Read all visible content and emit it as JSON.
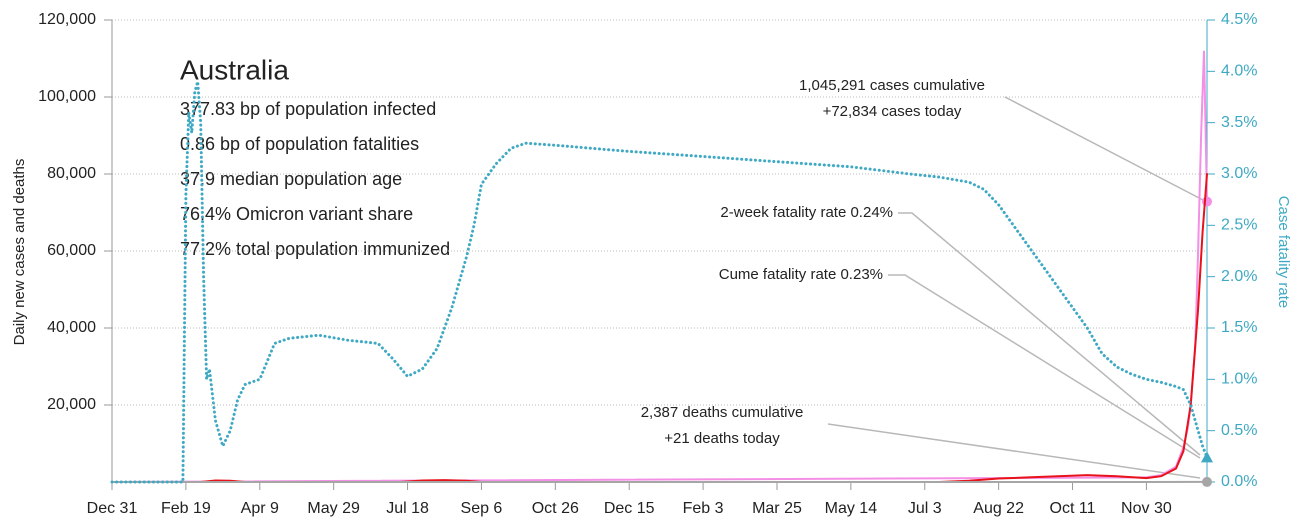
{
  "chart_data": {
    "type": "line",
    "title": "Australia",
    "text_lines": [
      "377.83 bp of population infected",
      "0.86 bp of population fatalities",
      "37.9 median population age",
      "76.4% Omicron variant share",
      "77.2% total population immunized"
    ],
    "ylabel": "Daily new cases and deaths",
    "y2label": "Case fatality rate",
    "annotations": [
      "1,045,291 cases cumulative",
      "+72,834 cases today",
      "2-week fatality rate 0.24%",
      "Cume fatality rate 0.23%",
      "2,387 deaths cumulative",
      "+21 deaths today"
    ],
    "xlim": [
      0,
      741
    ],
    "xticks": [
      {
        "value": 0,
        "label": "Dec 31"
      },
      {
        "value": 50,
        "label": "Feb 19"
      },
      {
        "value": 100,
        "label": "Apr 9"
      },
      {
        "value": 150,
        "label": "May 29"
      },
      {
        "value": 200,
        "label": "Jul 18"
      },
      {
        "value": 250,
        "label": "Sep 6"
      },
      {
        "value": 300,
        "label": "Oct 26"
      },
      {
        "value": 350,
        "label": "Dec 15"
      },
      {
        "value": 400,
        "label": "Feb 3"
      },
      {
        "value": 450,
        "label": "Mar 25"
      },
      {
        "value": 500,
        "label": "May 14"
      },
      {
        "value": 550,
        "label": "Jul 3"
      },
      {
        "value": 600,
        "label": "Aug 22"
      },
      {
        "value": 650,
        "label": "Oct 11"
      },
      {
        "value": 700,
        "label": "Nov 30"
      }
    ],
    "ylim": [
      0,
      120000
    ],
    "yticks": [
      {
        "value": 20000,
        "label": "20,000"
      },
      {
        "value": 40000,
        "label": "40,000"
      },
      {
        "value": 60000,
        "label": "60,000"
      },
      {
        "value": 80000,
        "label": "80,000"
      },
      {
        "value": 100000,
        "label": "100,000"
      },
      {
        "value": 120000,
        "label": "120,000"
      }
    ],
    "y2lim": [
      0,
      4.5
    ],
    "y2ticks": [
      {
        "value": 0,
        "label": "0.0%"
      },
      {
        "value": 0.5,
        "label": "0.5%"
      },
      {
        "value": 1,
        "label": "1.0%"
      },
      {
        "value": 1.5,
        "label": "1.5%"
      },
      {
        "value": 2,
        "label": "2.0%"
      },
      {
        "value": 2.5,
        "label": "2.5%"
      },
      {
        "value": 3,
        "label": "3.0%"
      },
      {
        "value": 3.5,
        "label": "3.5%"
      },
      {
        "value": 4,
        "label": "4.0%"
      },
      {
        "value": 4.5,
        "label": "4.5%"
      }
    ],
    "grid": true,
    "series": [
      {
        "color": "#f48fe6",
        "style": "solid",
        "marker": "circle",
        "x": [
          0,
          700,
          710,
          720,
          725,
          728,
          730,
          733,
          735,
          737,
          739,
          741
        ],
        "values": [
          0,
          1200,
          1800,
          4000,
          9000,
          14000,
          20000,
          35000,
          60000,
          90000,
          112000,
          72834
        ]
      },
      {
        "color": "#e8121a",
        "style": "solid",
        "x": [
          0,
          60,
          70,
          80,
          90,
          100,
          195,
          210,
          225,
          240,
          250,
          560,
          580,
          600,
          620,
          640,
          660,
          680,
          700,
          710,
          720,
          725,
          730,
          735,
          738,
          741
        ],
        "values": [
          0,
          0,
          400,
          300,
          0,
          0,
          0,
          400,
          500,
          300,
          0,
          0,
          300,
          900,
          1200,
          1500,
          1800,
          1500,
          1000,
          1500,
          3500,
          8000,
          20000,
          45000,
          65000,
          80000
        ]
      },
      {
        "color": "#a6a6a6",
        "style": "solid",
        "marker": "circle",
        "x": [
          0,
          700,
          741
        ],
        "values": [
          0,
          10,
          21
        ]
      },
      {
        "color": "#3fa9c4",
        "style": "dotted",
        "axis": "y2",
        "marker": "triangle",
        "x": [
          0,
          48,
          50,
          52,
          54,
          56,
          58,
          60,
          62,
          64,
          66,
          70,
          75,
          80,
          85,
          90,
          100,
          110,
          120,
          140,
          160,
          180,
          190,
          200,
          210,
          220,
          230,
          240,
          245,
          250,
          260,
          270,
          280,
          300,
          350,
          400,
          450,
          500,
          540,
          560,
          580,
          590,
          600,
          610,
          620,
          630,
          640,
          650,
          660,
          670,
          680,
          690,
          700,
          710,
          720,
          725,
          730,
          735,
          738,
          741
        ],
        "values": [
          0,
          0,
          2.8,
          3.6,
          3.4,
          3.8,
          3.9,
          3.5,
          2.0,
          1.0,
          1.1,
          0.6,
          0.35,
          0.5,
          0.8,
          0.95,
          1.0,
          1.35,
          1.4,
          1.43,
          1.38,
          1.35,
          1.2,
          1.03,
          1.1,
          1.3,
          1.7,
          2.2,
          2.5,
          2.9,
          3.1,
          3.25,
          3.3,
          3.28,
          3.22,
          3.17,
          3.12,
          3.07,
          3.0,
          2.97,
          2.92,
          2.85,
          2.7,
          2.5,
          2.3,
          2.1,
          1.9,
          1.7,
          1.5,
          1.25,
          1.12,
          1.05,
          1.0,
          0.97,
          0.93,
          0.9,
          0.75,
          0.5,
          0.35,
          0.24
        ]
      }
    ]
  }
}
